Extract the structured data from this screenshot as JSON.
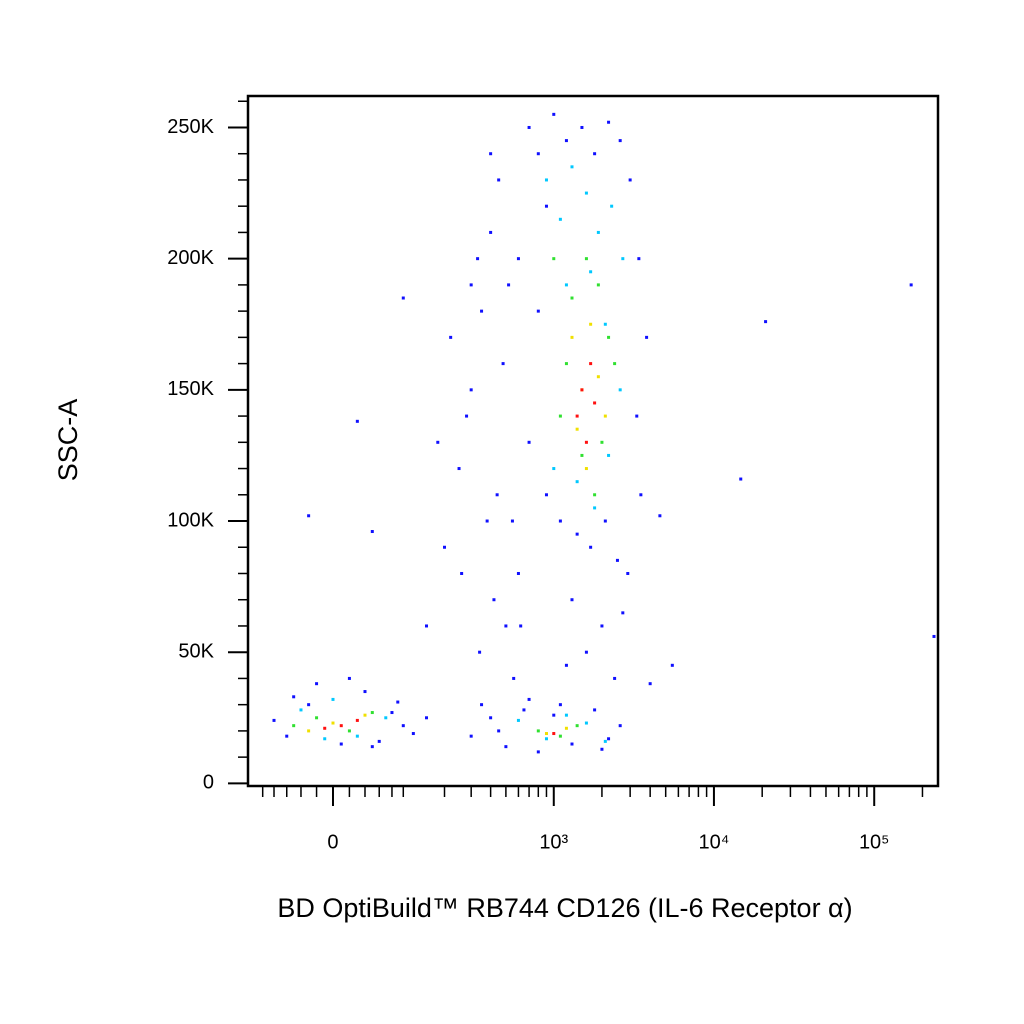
{
  "chart_data": {
    "type": "scatter",
    "x_label": "BD OptiBuild™ RB744 CD126 (IL-6 Receptor α)",
    "y_label": "SSC-A",
    "xscale": "logicle",
    "xlim": [
      -130,
      250000
    ],
    "xticks": [
      0,
      {
        "value": 1000,
        "label": "10³"
      },
      {
        "value": 10000,
        "label": "10⁴"
      },
      {
        "value": 100000,
        "label": "10⁵"
      }
    ],
    "xminor_ticks": [
      -100,
      -80,
      -60,
      -40,
      -20,
      20,
      40,
      60,
      80,
      100,
      200,
      300,
      400,
      500,
      600,
      700,
      800,
      900,
      2000,
      3000,
      4000,
      5000,
      6000,
      7000,
      8000,
      9000,
      20000,
      30000,
      40000,
      50000,
      60000,
      70000,
      80000,
      90000,
      200000
    ],
    "ylim": [
      -1000,
      262000
    ],
    "yticks": [
      0,
      {
        "value": 50000,
        "label": "50K"
      },
      {
        "value": 100000,
        "label": "100K"
      },
      {
        "value": 150000,
        "label": "150K"
      },
      {
        "value": 200000,
        "label": "200K"
      },
      {
        "value": 250000,
        "label": "250K"
      }
    ],
    "yminor_ticks": [
      10000,
      20000,
      30000,
      40000,
      60000,
      70000,
      80000,
      90000,
      110000,
      120000,
      130000,
      140000,
      160000,
      170000,
      180000,
      190000,
      210000,
      220000,
      230000,
      240000,
      260000
    ],
    "series": [
      {
        "color": "#1010ff",
        "x": [
          -60,
          -30,
          10,
          40,
          80,
          -80,
          20,
          60,
          100,
          -20,
          50,
          90,
          -50,
          120,
          150,
          300,
          400,
          500,
          650,
          800,
          1000,
          1300,
          1800,
          2200,
          2600,
          350,
          700,
          1100,
          2000,
          450,
          150,
          200,
          250,
          300,
          350,
          400,
          450,
          500,
          550,
          600,
          220,
          280,
          330,
          380,
          420,
          480,
          520,
          180,
          260,
          340,
          440,
          560,
          620,
          300,
          400,
          700,
          800,
          900,
          1000,
          1200,
          1500,
          1800,
          2200,
          2600,
          3000,
          3400,
          3800,
          700,
          900,
          1100,
          1400,
          1700,
          2100,
          2500,
          2900,
          3300,
          800,
          1300,
          2000,
          2700,
          600,
          3500,
          1600,
          1200,
          2400,
          170000,
          21000,
          14700,
          236000,
          4600,
          5500,
          4000,
          -30,
          30,
          100,
          50
        ],
        "y": [
          18000,
          30000,
          15000,
          35000,
          27000,
          24000,
          40000,
          16000,
          22000,
          38000,
          14000,
          31000,
          33000,
          19000,
          25000,
          18000,
          25000,
          14000,
          28000,
          12000,
          26000,
          15000,
          28000,
          17000,
          22000,
          30000,
          32000,
          30000,
          13000,
          20000,
          60000,
          90000,
          120000,
          150000,
          180000,
          210000,
          230000,
          60000,
          100000,
          80000,
          170000,
          140000,
          200000,
          100000,
          70000,
          160000,
          190000,
          130000,
          80000,
          50000,
          110000,
          40000,
          60000,
          190000,
          240000,
          250000,
          240000,
          220000,
          255000,
          245000,
          250000,
          240000,
          252000,
          245000,
          230000,
          200000,
          170000,
          130000,
          110000,
          100000,
          95000,
          90000,
          100000,
          85000,
          80000,
          140000,
          180000,
          70000,
          60000,
          65000,
          200000,
          110000,
          50000,
          45000,
          40000,
          190000,
          176000,
          116000,
          56000,
          102000,
          45000,
          38000,
          102000,
          138000,
          185000,
          96000
        ]
      },
      {
        "color": "#00c8ff",
        "x": [
          900,
          1100,
          1300,
          1600,
          1900,
          2300,
          2700,
          1000,
          1400,
          1800,
          2200,
          2600,
          1200,
          1700,
          2100,
          -40,
          0,
          30,
          70,
          -10,
          600,
          900,
          1200,
          1600,
          2100
        ],
        "y": [
          230000,
          215000,
          235000,
          225000,
          210000,
          220000,
          200000,
          120000,
          115000,
          105000,
          125000,
          150000,
          190000,
          195000,
          175000,
          28000,
          32000,
          18000,
          25000,
          17000,
          24000,
          17000,
          26000,
          23000,
          16000
        ]
      },
      {
        "color": "#30e030",
        "x": [
          1000,
          1300,
          1600,
          1900,
          2200,
          1100,
          1500,
          2000,
          1200,
          1800,
          2400,
          -20,
          20,
          50,
          -50,
          800,
          1100,
          1400
        ],
        "y": [
          200000,
          185000,
          200000,
          190000,
          170000,
          140000,
          125000,
          130000,
          160000,
          110000,
          160000,
          25000,
          20000,
          27000,
          22000,
          20000,
          18000,
          22000
        ]
      },
      {
        "color": "#f0e000",
        "x": [
          1300,
          1500,
          1700,
          1900,
          1400,
          2100,
          1600,
          0,
          40,
          -30,
          900,
          1200
        ],
        "y": [
          170000,
          150000,
          175000,
          155000,
          135000,
          140000,
          120000,
          23000,
          26000,
          20000,
          19000,
          21000
        ]
      },
      {
        "color": "#ff1010",
        "x": [
          1500,
          1700,
          1400,
          1800,
          1600,
          10,
          30,
          -10,
          1000
        ],
        "y": [
          150000,
          160000,
          140000,
          145000,
          130000,
          22000,
          24000,
          21000,
          19000
        ]
      }
    ]
  }
}
